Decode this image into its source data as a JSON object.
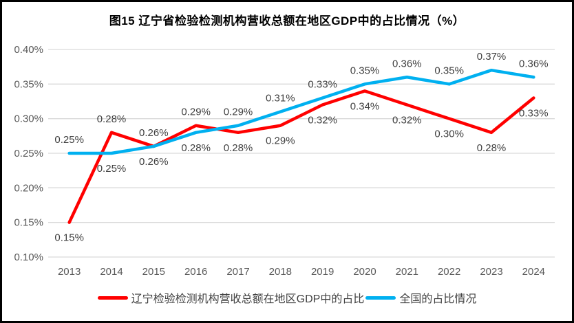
{
  "frame": {
    "background": "#FFFFFF",
    "border_color": "#000000"
  },
  "chart_data": {
    "type": "line",
    "title": "图15 辽宁省检验检测机构营收总额在地区GDP中的占比情况（%）",
    "categories": [
      "2013",
      "2014",
      "2015",
      "2016",
      "2017",
      "2018",
      "2019",
      "2020",
      "2021",
      "2022",
      "2023",
      "2024"
    ],
    "series": [
      {
        "name": "辽宁检验检测机构营收总额在地区GDP中的占比",
        "color": "#FF0000",
        "values": [
          0.15,
          0.28,
          0.26,
          0.29,
          0.28,
          0.29,
          0.32,
          0.34,
          0.32,
          0.3,
          0.28,
          0.33
        ],
        "labels": [
          "0.15%",
          "0.28%",
          "0.26%",
          "0.29%",
          "0.28%",
          "0.29%",
          "0.32%",
          "0.34%",
          "0.32%",
          "0.30%",
          "0.28%",
          "0.33%"
        ],
        "label_positions": [
          "below",
          "above",
          "above",
          "above",
          "below",
          "below",
          "below",
          "below",
          "below",
          "below",
          "below",
          "below"
        ]
      },
      {
        "name": "全国的占比情况",
        "color": "#00B0F0",
        "values": [
          0.25,
          0.25,
          0.26,
          0.28,
          0.29,
          0.31,
          0.33,
          0.35,
          0.36,
          0.35,
          0.37,
          0.36
        ],
        "labels": [
          "0.25%",
          "0.25%",
          "0.26%",
          "0.28%",
          "0.29%",
          "0.31%",
          "0.33%",
          "0.35%",
          "0.36%",
          "0.35%",
          "0.37%",
          "0.36%"
        ],
        "label_positions": [
          "above",
          "below",
          "below",
          "below",
          "above",
          "above",
          "above",
          "above",
          "above",
          "above",
          "above",
          "above"
        ]
      }
    ],
    "ylim": [
      0.1,
      0.4
    ],
    "yticks": [
      {
        "value": 0.4,
        "label": "0.40%"
      },
      {
        "value": 0.35,
        "label": "0.35%"
      },
      {
        "value": 0.3,
        "label": "0.30%"
      },
      {
        "value": 0.25,
        "label": "0.25%"
      },
      {
        "value": 0.2,
        "label": "0.20%"
      },
      {
        "value": 0.15,
        "label": "0.15%"
      },
      {
        "value": 0.1,
        "label": "0.10%"
      }
    ],
    "grid": true,
    "legend_position": "bottom",
    "colors": {
      "gridline": "#D9D9D9",
      "tick_text": "#595959",
      "data_label_text": "#404040",
      "title_text": "#000000"
    }
  }
}
